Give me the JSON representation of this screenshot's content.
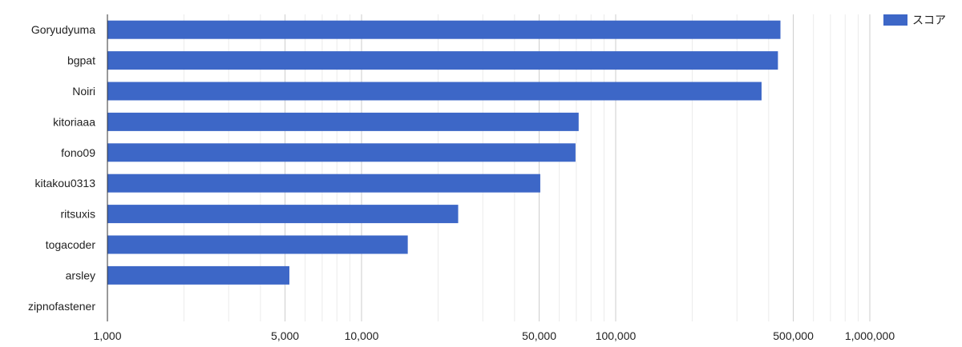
{
  "chart_data": {
    "type": "bar",
    "orientation": "horizontal",
    "x_scale": "log",
    "xlim": [
      1000,
      1500000
    ],
    "categories": [
      "Goryudyuma",
      "bgpat",
      "Noiri",
      "kitoriaaa",
      "fono09",
      "kitakou0313",
      "ritsuxis",
      "togacoder",
      "arsley",
      "zipnofastener"
    ],
    "series": [
      {
        "name": "スコア",
        "color": "#3d67c7",
        "values": [
          445000,
          435000,
          375000,
          71500,
          69500,
          50500,
          24000,
          15200,
          5200,
          1000
        ]
      }
    ],
    "x_ticks": [
      {
        "value": 1000,
        "label": "1,000"
      },
      {
        "value": 5000,
        "label": "5,000"
      },
      {
        "value": 10000,
        "label": "10,000"
      },
      {
        "value": 50000,
        "label": "50,000"
      },
      {
        "value": 100000,
        "label": "100,000"
      },
      {
        "value": 500000,
        "label": "500,000"
      },
      {
        "value": 1000000,
        "label": "1,000,000"
      }
    ],
    "title": "",
    "xlabel": "",
    "ylabel": "",
    "grid": true,
    "legend": "top-right"
  }
}
